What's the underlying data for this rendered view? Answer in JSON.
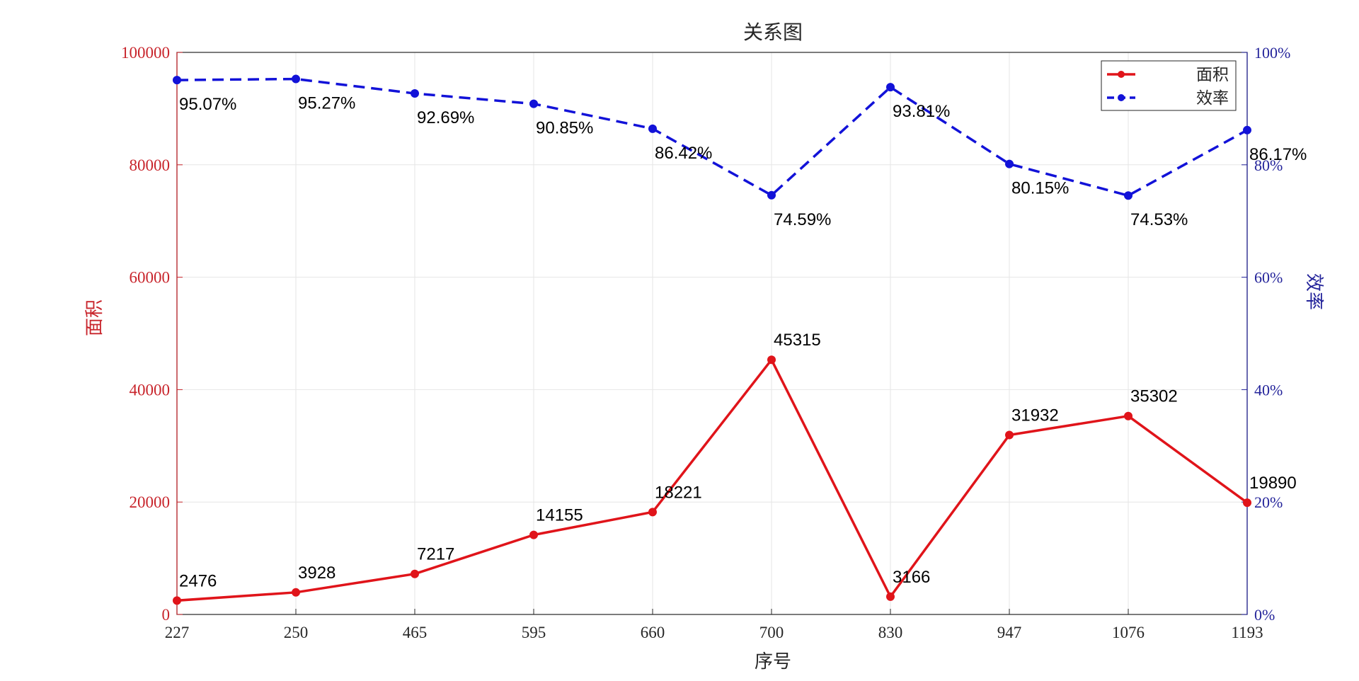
{
  "chart_data": {
    "type": "line",
    "title": "关系图",
    "xlabel": "序号",
    "ylabel_left": "面积",
    "ylabel_right": "效率",
    "categories": [
      "227",
      "250",
      "465",
      "595",
      "660",
      "700",
      "830",
      "947",
      "1076",
      "1193"
    ],
    "series": [
      {
        "name": "面积",
        "axis": "left",
        "color": "#e0141a",
        "style": "solid",
        "values": [
          2476,
          3928,
          7217,
          14155,
          18221,
          45315,
          3166,
          31932,
          35302,
          19890
        ],
        "labels": [
          "2476",
          "3928",
          "7217",
          "14155",
          "18221",
          "45315",
          "3166",
          "31932",
          "35302",
          "19890"
        ]
      },
      {
        "name": "效率",
        "axis": "right",
        "color": "#1212d8",
        "style": "dashed",
        "values": [
          95.07,
          95.27,
          92.69,
          90.85,
          86.42,
          74.59,
          93.81,
          80.15,
          74.53,
          86.17
        ],
        "labels": [
          "95.07%",
          "95.27%",
          "92.69%",
          "90.85%",
          "86.42%",
          "74.59%",
          "93.81%",
          "80.15%",
          "74.53%",
          "86.17%"
        ]
      }
    ],
    "y_left": {
      "range": [
        0,
        100000
      ],
      "ticks": [
        "0",
        "20000",
        "40000",
        "60000",
        "80000",
        "100000"
      ],
      "color": "#c8242b"
    },
    "y_right": {
      "range": [
        0,
        100
      ],
      "ticks": [
        "0%",
        "20%",
        "40%",
        "60%",
        "80%",
        "100%"
      ],
      "color": "#23239a"
    },
    "grid": true,
    "legend": "top-right"
  }
}
